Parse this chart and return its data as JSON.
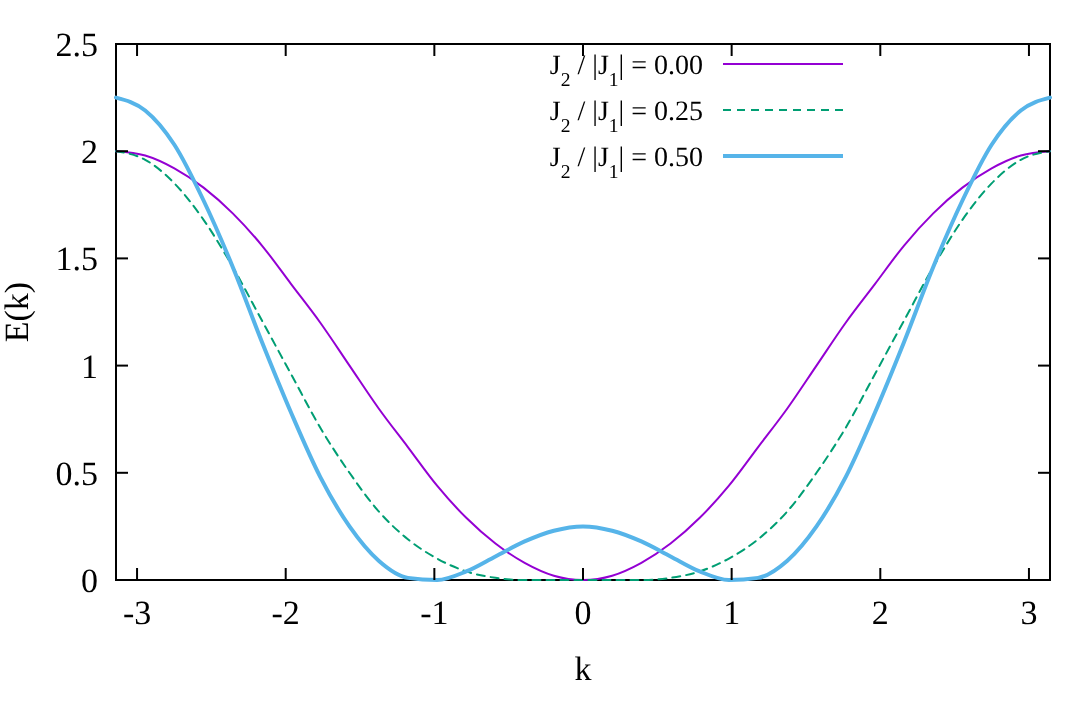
{
  "chart_data": {
    "type": "line",
    "xlabel": "k",
    "ylabel": "E(k)",
    "x": [
      -3.1416,
      -2.9452,
      -2.7489,
      -2.5525,
      -2.3562,
      -2.1598,
      -1.9635,
      -1.7671,
      -1.5708,
      -1.3744,
      -1.1781,
      -0.9817,
      -0.7854,
      -0.589,
      -0.3927,
      -0.1963,
      0,
      0.1963,
      0.3927,
      0.589,
      0.7854,
      0.9817,
      1.1781,
      1.3744,
      1.5708,
      1.7671,
      1.9635,
      2.1598,
      2.3562,
      2.5525,
      2.7489,
      2.9452,
      3.1416
    ],
    "series": [
      {
        "name": "J$_{2}$ / |J$_{1}$| = 0.00",
        "color": "#9400d3",
        "line_style": "solid",
        "values": [
          2,
          1.98,
          1.92,
          1.83,
          1.71,
          1.56,
          1.38,
          1.2,
          1,
          0.8,
          0.62,
          0.44,
          0.29,
          0.17,
          0.08,
          0.02,
          0,
          0.02,
          0.08,
          0.17,
          0.29,
          0.44,
          0.62,
          0.8,
          1,
          1.2,
          1.38,
          1.56,
          1.71,
          1.83,
          1.92,
          1.98,
          2
        ]
      },
      {
        "name": "J$_{2}$ / |J$_{1}$| = 0.25",
        "color": "#009e73",
        "line_style": "dashed",
        "values": [
          2,
          1.96,
          1.85,
          1.68,
          1.46,
          1.21,
          0.96,
          0.71,
          0.5,
          0.32,
          0.19,
          0.1,
          0.04,
          0.01,
          0,
          0,
          0,
          0,
          0,
          0.01,
          0.04,
          0.1,
          0.19,
          0.32,
          0.5,
          0.71,
          0.96,
          1.21,
          1.46,
          1.68,
          1.85,
          1.96,
          2
        ]
      },
      {
        "name": "J$_{2}$ / |J$_{1}$| = 0.50",
        "color": "#56b4e9",
        "line_style": "solid",
        "values": [
          2.25,
          2.19,
          2.03,
          1.77,
          1.46,
          1.11,
          0.78,
          0.48,
          0.25,
          0.09,
          0.01,
          0,
          0.04,
          0.11,
          0.18,
          0.23,
          0.25,
          0.23,
          0.18,
          0.11,
          0.04,
          0,
          0.01,
          0.09,
          0.25,
          0.48,
          0.78,
          1.11,
          1.46,
          1.77,
          2.03,
          2.19,
          2.25
        ]
      }
    ],
    "xlim": [
      -3.1416,
      3.1416
    ],
    "xticks": [
      -3,
      -2,
      -1,
      0,
      1,
      2,
      3
    ],
    "ylim": [
      0,
      2.5
    ],
    "yticks": [
      0,
      0.5,
      1,
      1.5,
      2,
      2.5
    ],
    "grid": false,
    "legend": "top",
    "marker": "none"
  }
}
